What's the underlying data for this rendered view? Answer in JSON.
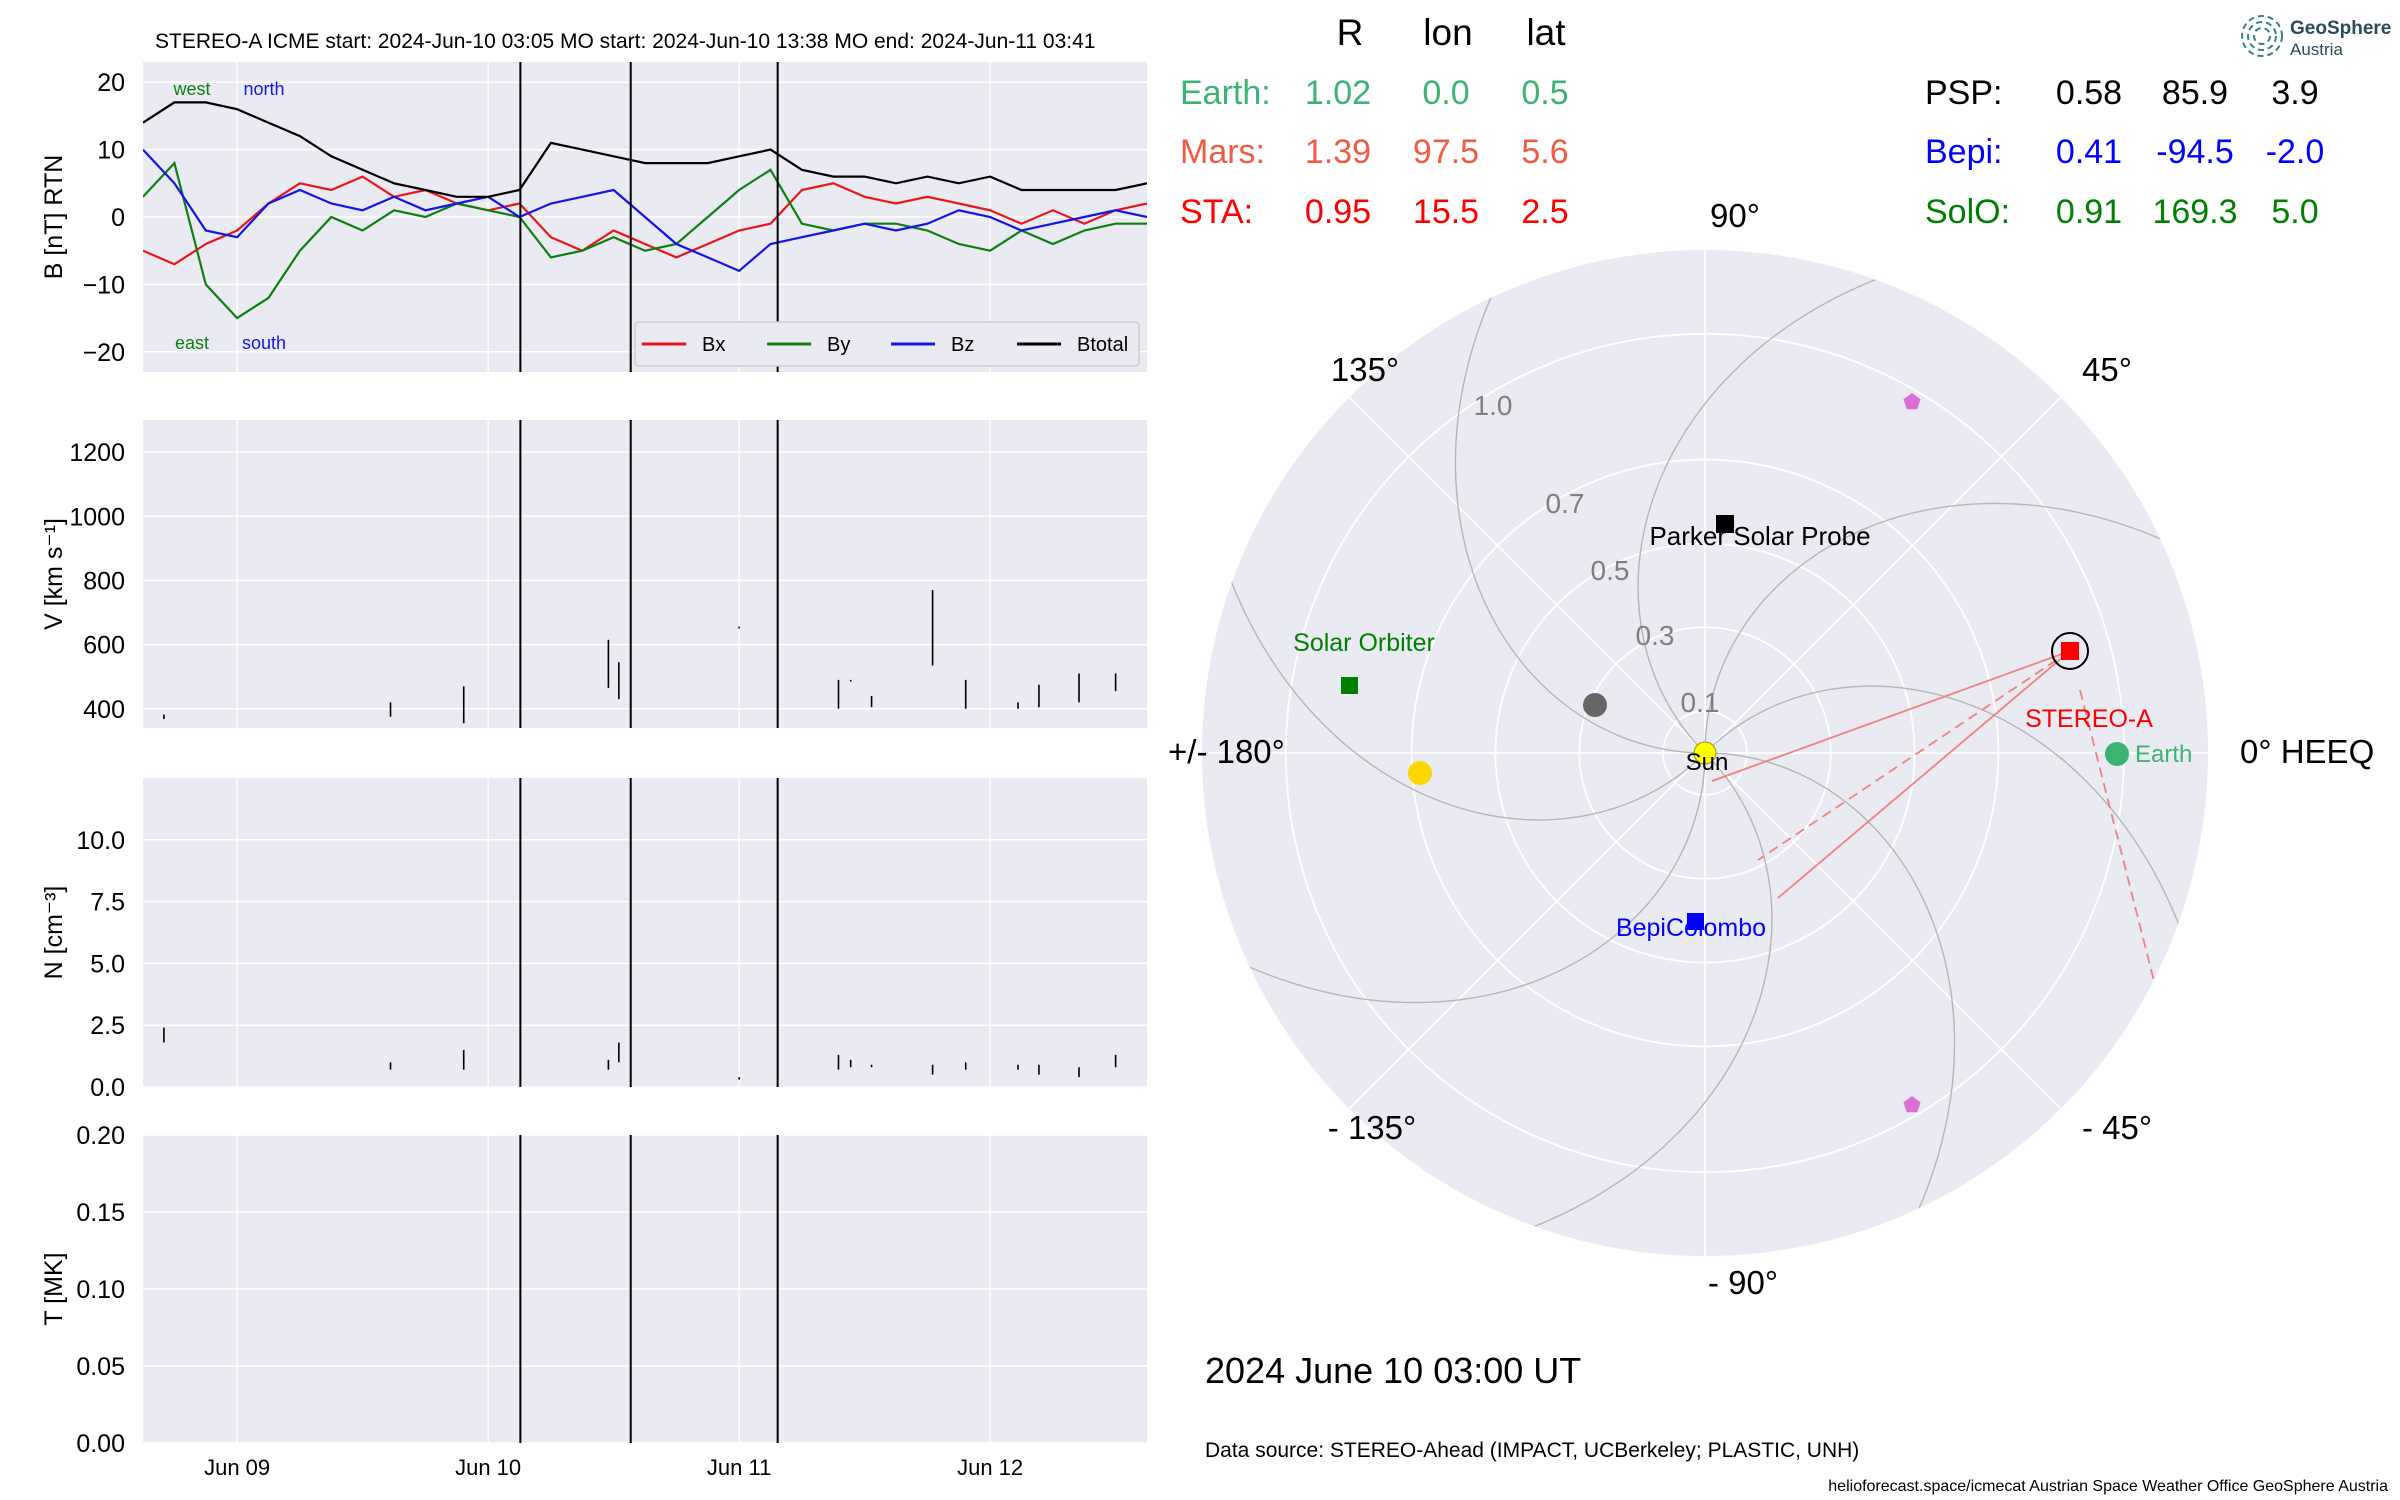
{
  "header": {
    "title": "STEREO-A    ICME start: 2024-Jun-10 03:05   MO start: 2024-Jun-10 13:38   MO end: 2024-Jun-11 03:41"
  },
  "colors": {
    "panel_bg": "#eaeaf2",
    "bx": "#e8161b",
    "by": "#0f7f12",
    "bz": "#1414e6",
    "btotal": "#000000",
    "earth": "#3cb371",
    "mars": "#f25a44",
    "sta": "#ff0000",
    "psp": "#000000",
    "bepi": "#0000ff",
    "solo": "#008000",
    "sun": "#ffff00",
    "venus": "#ffd700",
    "mercury": "#666666",
    "l4l5": "#da70d6"
  },
  "position_table": {
    "headers": [
      "R",
      "lon",
      "lat"
    ],
    "rows": [
      {
        "name": "Earth:",
        "r": "1.02",
        "lon": "0.0",
        "lat": "0.5",
        "color": "#3cb371"
      },
      {
        "name": "Mars:",
        "r": "1.39",
        "lon": "97.5",
        "lat": "5.6",
        "color": "#f25a44"
      },
      {
        "name": "STA:",
        "r": "0.95",
        "lon": "15.5",
        "lat": "2.5",
        "color": "#ff0000"
      },
      {
        "name": "PSP:",
        "r": "0.58",
        "lon": "85.9",
        "lat": "3.9",
        "color": "#000000"
      },
      {
        "name": "Bepi:",
        "r": "0.41",
        "lon": "-94.5",
        "lat": "-2.0",
        "color": "#0000ff"
      },
      {
        "name": "SolO:",
        "r": "0.91",
        "lon": "169.3",
        "lat": "5.0",
        "color": "#008000"
      }
    ]
  },
  "logo": {
    "line1": "GeoSphere",
    "line2": "Austria"
  },
  "polar": {
    "angle_labels": [
      "90°",
      "45°",
      "0° HEEQ",
      "- 45°",
      "- 90°",
      "- 135°",
      "+/- 180°",
      "135°"
    ],
    "radial_labels": [
      "0.1",
      "0.3",
      "0.5",
      "0.7",
      "1.0"
    ],
    "bodies": [
      {
        "label": "Sun"
      },
      {
        "label": "Earth"
      },
      {
        "label": "STEREO-A"
      },
      {
        "label": "Parker Solar Probe"
      },
      {
        "label": "Solar Orbiter"
      },
      {
        "label": "BepiColombo"
      }
    ]
  },
  "date_label": "2024 June 10  03:00 UT",
  "data_source": "Data source: STEREO-Ahead (IMPACT, UCBerkeley; PLASTIC, UNH)",
  "footer": "helioforecast.space/icmecat   Austrian Space Weather Office   GeoSphere Austria",
  "chart_data": [
    {
      "type": "line",
      "ylabel": "B [nT] RTN",
      "ylim": [
        -23,
        23
      ],
      "yticks": [
        20,
        10,
        0,
        -10,
        -20
      ],
      "xticks": [
        "Jun 09",
        "Jun 10",
        "Jun 11",
        "Jun 12"
      ],
      "xlim": [
        "2024-06-08 15:00",
        "2024-06-12 15:00"
      ],
      "event_lines": [
        "2024-06-10 03:05",
        "2024-06-10 13:38",
        "2024-06-11 03:41"
      ],
      "annotations": [
        {
          "text": "west",
          "color": "#0f7f12"
        },
        {
          "text": "north",
          "color": "#1414e6"
        },
        {
          "text": "east",
          "color": "#0f7f12"
        },
        {
          "text": "south",
          "color": "#1414e6"
        }
      ],
      "legend": "lower right",
      "series": [
        {
          "name": "Bx",
          "color": "#e8161b",
          "x": [
            "2024-06-08 15:00",
            "2024-06-08 18:00",
            "2024-06-08 21:00",
            "2024-06-09 00:00",
            "2024-06-09 03:00",
            "2024-06-09 06:00",
            "2024-06-09 09:00",
            "2024-06-09 12:00",
            "2024-06-09 15:00",
            "2024-06-09 18:00",
            "2024-06-09 21:00",
            "2024-06-10 00:00",
            "2024-06-10 03:00",
            "2024-06-10 06:00",
            "2024-06-10 09:00",
            "2024-06-10 12:00",
            "2024-06-10 15:00",
            "2024-06-10 18:00",
            "2024-06-10 21:00",
            "2024-06-11 00:00",
            "2024-06-11 03:00",
            "2024-06-11 06:00",
            "2024-06-11 09:00",
            "2024-06-11 12:00",
            "2024-06-11 15:00",
            "2024-06-11 18:00",
            "2024-06-11 21:00",
            "2024-06-12 00:00",
            "2024-06-12 03:00",
            "2024-06-12 06:00",
            "2024-06-12 09:00",
            "2024-06-12 12:00",
            "2024-06-12 15:00"
          ],
          "y": [
            -5,
            -7,
            -4,
            -2,
            2,
            5,
            4,
            6,
            3,
            4,
            2,
            1,
            2,
            -3,
            -5,
            -2,
            -4,
            -6,
            -4,
            -2,
            -1,
            4,
            5,
            3,
            2,
            3,
            2,
            1,
            -1,
            1,
            -1,
            1,
            2
          ]
        },
        {
          "name": "By",
          "color": "#0f7f12",
          "x": [
            "2024-06-08 15:00",
            "2024-06-08 18:00",
            "2024-06-08 21:00",
            "2024-06-09 00:00",
            "2024-06-09 03:00",
            "2024-06-09 06:00",
            "2024-06-09 09:00",
            "2024-06-09 12:00",
            "2024-06-09 15:00",
            "2024-06-09 18:00",
            "2024-06-09 21:00",
            "2024-06-10 00:00",
            "2024-06-10 03:00",
            "2024-06-10 06:00",
            "2024-06-10 09:00",
            "2024-06-10 12:00",
            "2024-06-10 15:00",
            "2024-06-10 18:00",
            "2024-06-10 21:00",
            "2024-06-11 00:00",
            "2024-06-11 03:00",
            "2024-06-11 06:00",
            "2024-06-11 09:00",
            "2024-06-11 12:00",
            "2024-06-11 15:00",
            "2024-06-11 18:00",
            "2024-06-11 21:00",
            "2024-06-12 00:00",
            "2024-06-12 03:00",
            "2024-06-12 06:00",
            "2024-06-12 09:00",
            "2024-06-12 12:00",
            "2024-06-12 15:00"
          ],
          "y": [
            3,
            8,
            -10,
            -15,
            -12,
            -5,
            0,
            -2,
            1,
            0,
            2,
            1,
            0,
            -6,
            -5,
            -3,
            -5,
            -4,
            0,
            4,
            7,
            -1,
            -2,
            -1,
            -1,
            -2,
            -4,
            -5,
            -2,
            -4,
            -2,
            -1,
            -1
          ]
        },
        {
          "name": "Bz",
          "color": "#1414e6",
          "x": [
            "2024-06-08 15:00",
            "2024-06-08 18:00",
            "2024-06-08 21:00",
            "2024-06-09 00:00",
            "2024-06-09 03:00",
            "2024-06-09 06:00",
            "2024-06-09 09:00",
            "2024-06-09 12:00",
            "2024-06-09 15:00",
            "2024-06-09 18:00",
            "2024-06-09 21:00",
            "2024-06-10 00:00",
            "2024-06-10 03:00",
            "2024-06-10 06:00",
            "2024-06-10 09:00",
            "2024-06-10 12:00",
            "2024-06-10 15:00",
            "2024-06-10 18:00",
            "2024-06-10 21:00",
            "2024-06-11 00:00",
            "2024-06-11 03:00",
            "2024-06-11 06:00",
            "2024-06-11 09:00",
            "2024-06-11 12:00",
            "2024-06-11 15:00",
            "2024-06-11 18:00",
            "2024-06-11 21:00",
            "2024-06-12 00:00",
            "2024-06-12 03:00",
            "2024-06-12 06:00",
            "2024-06-12 09:00",
            "2024-06-12 12:00",
            "2024-06-12 15:00"
          ],
          "y": [
            10,
            5,
            -2,
            -3,
            2,
            4,
            2,
            1,
            3,
            1,
            2,
            3,
            0,
            2,
            3,
            4,
            0,
            -4,
            -6,
            -8,
            -4,
            -3,
            -2,
            -1,
            -2,
            -1,
            1,
            0,
            -2,
            -1,
            0,
            1,
            0
          ]
        },
        {
          "name": "Btotal",
          "color": "#000000",
          "x": [
            "2024-06-08 15:00",
            "2024-06-08 18:00",
            "2024-06-08 21:00",
            "2024-06-09 00:00",
            "2024-06-09 03:00",
            "2024-06-09 06:00",
            "2024-06-09 09:00",
            "2024-06-09 12:00",
            "2024-06-09 15:00",
            "2024-06-09 18:00",
            "2024-06-09 21:00",
            "2024-06-10 00:00",
            "2024-06-10 03:00",
            "2024-06-10 06:00",
            "2024-06-10 09:00",
            "2024-06-10 12:00",
            "2024-06-10 15:00",
            "2024-06-10 18:00",
            "2024-06-10 21:00",
            "2024-06-11 00:00",
            "2024-06-11 03:00",
            "2024-06-11 06:00",
            "2024-06-11 09:00",
            "2024-06-11 12:00",
            "2024-06-11 15:00",
            "2024-06-11 18:00",
            "2024-06-11 21:00",
            "2024-06-12 00:00",
            "2024-06-12 03:00",
            "2024-06-12 06:00",
            "2024-06-12 09:00",
            "2024-06-12 12:00",
            "2024-06-12 15:00"
          ],
          "y": [
            14,
            17,
            17,
            16,
            14,
            12,
            9,
            7,
            5,
            4,
            3,
            3,
            4,
            11,
            10,
            9,
            8,
            8,
            8,
            9,
            10,
            7,
            6,
            6,
            5,
            6,
            5,
            6,
            4,
            4,
            4,
            4,
            5
          ]
        }
      ]
    },
    {
      "type": "line",
      "ylabel": "V [km s⁻¹]",
      "ylim": [
        340,
        1300
      ],
      "yticks": [
        1200,
        1000,
        800,
        600,
        400
      ],
      "segments": [
        {
          "x": "2024-06-08 17:00",
          "y": [
            368,
            382
          ]
        },
        {
          "x": "2024-06-09 14:40",
          "y": [
            375,
            420
          ]
        },
        {
          "x": "2024-06-09 21:40",
          "y": [
            355,
            470
          ]
        },
        {
          "x": "2024-06-10 11:30",
          "y": [
            465,
            615
          ]
        },
        {
          "x": "2024-06-10 12:30",
          "y": [
            430,
            545
          ]
        },
        {
          "x": "2024-06-11 00:00",
          "y": [
            650,
            656
          ]
        },
        {
          "x": "2024-06-11 09:30",
          "y": [
            400,
            490
          ]
        },
        {
          "x": "2024-06-11 10:40",
          "y": [
            485,
            490
          ]
        },
        {
          "x": "2024-06-11 12:40",
          "y": [
            405,
            440
          ]
        },
        {
          "x": "2024-06-11 18:30",
          "y": [
            535,
            770
          ]
        },
        {
          "x": "2024-06-11 21:40",
          "y": [
            400,
            490
          ]
        },
        {
          "x": "2024-06-12 02:40",
          "y": [
            400,
            420
          ]
        },
        {
          "x": "2024-06-12 04:40",
          "y": [
            405,
            475
          ]
        },
        {
          "x": "2024-06-12 08:30",
          "y": [
            420,
            510
          ]
        },
        {
          "x": "2024-06-12 12:00",
          "y": [
            455,
            510
          ]
        }
      ]
    },
    {
      "type": "line",
      "ylabel": "N [cm⁻³]",
      "ylim": [
        0,
        12.5
      ],
      "yticks": [
        10.0,
        7.5,
        5.0,
        2.5,
        0.0
      ],
      "segments": [
        {
          "x": "2024-06-08 17:00",
          "y": [
            1.8,
            2.4
          ]
        },
        {
          "x": "2024-06-09 14:40",
          "y": [
            0.7,
            1.0
          ]
        },
        {
          "x": "2024-06-09 21:40",
          "y": [
            0.7,
            1.5
          ]
        },
        {
          "x": "2024-06-10 11:30",
          "y": [
            0.7,
            1.1
          ]
        },
        {
          "x": "2024-06-10 12:30",
          "y": [
            1.0,
            1.8
          ]
        },
        {
          "x": "2024-06-11 00:00",
          "y": [
            0.3,
            0.4
          ]
        },
        {
          "x": "2024-06-11 09:30",
          "y": [
            0.7,
            1.3
          ]
        },
        {
          "x": "2024-06-11 10:40",
          "y": [
            0.8,
            1.1
          ]
        },
        {
          "x": "2024-06-11 12:40",
          "y": [
            0.8,
            0.9
          ]
        },
        {
          "x": "2024-06-11 18:30",
          "y": [
            0.5,
            0.9
          ]
        },
        {
          "x": "2024-06-11 21:40",
          "y": [
            0.7,
            1.0
          ]
        },
        {
          "x": "2024-06-12 02:40",
          "y": [
            0.7,
            0.9
          ]
        },
        {
          "x": "2024-06-12 04:40",
          "y": [
            0.5,
            0.9
          ]
        },
        {
          "x": "2024-06-12 08:30",
          "y": [
            0.4,
            0.8
          ]
        },
        {
          "x": "2024-06-12 12:00",
          "y": [
            0.8,
            1.3
          ]
        }
      ]
    },
    {
      "type": "line",
      "ylabel": "T [MK]",
      "ylim": [
        0,
        0.2
      ],
      "yticks": [
        0.2,
        0.15,
        0.1,
        0.05,
        0.0
      ],
      "series": []
    }
  ]
}
